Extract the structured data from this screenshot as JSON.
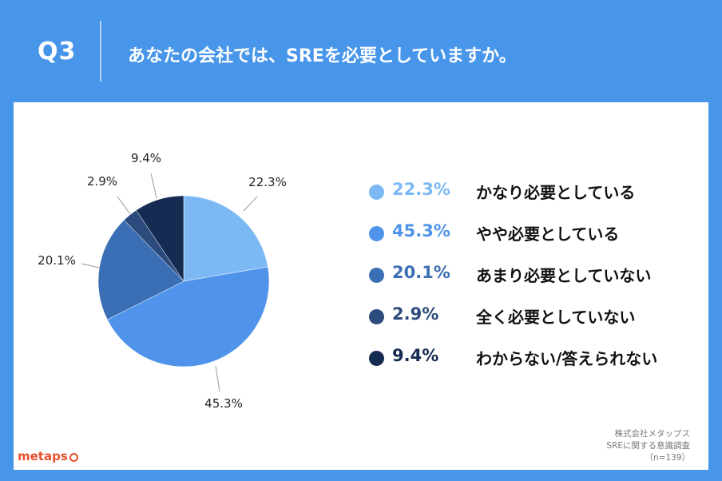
{
  "header": {
    "question_label": "Q3",
    "title": "あなたの会社では、SREを必要としていますか。"
  },
  "chart_data": {
    "type": "pie",
    "categories": [
      "かなり必要としている",
      "やや必要としている",
      "あまり必要としていない",
      "全く必要としていない",
      "わからない/答えられない"
    ],
    "values": [
      22.3,
      45.3,
      20.1,
      2.9,
      9.4
    ],
    "value_labels": [
      "22.3%",
      "45.3%",
      "20.1%",
      "2.9%",
      "9.4%"
    ],
    "colors": [
      "#7cb9f4",
      "#4f94ea",
      "#3b6fb5",
      "#2c4a7b",
      "#152b52"
    ],
    "start_angle": "12 o'clock",
    "direction": "clockwise",
    "legend_position": "right"
  },
  "legend": [
    {
      "pct": "22.3%",
      "label": "かなり必要としている",
      "color": "#7cb9f4"
    },
    {
      "pct": "45.3%",
      "label": "やや必要としている",
      "color": "#4f94ea"
    },
    {
      "pct": "20.1%",
      "label": "あまり必要としていない",
      "color": "#3b6fb5"
    },
    {
      "pct": "2.9%",
      "label": "全く必要としていない",
      "color": "#2c4a7b"
    },
    {
      "pct": "9.4%",
      "label": "わからない/答えられない",
      "color": "#152b52"
    }
  ],
  "footer": {
    "logo": "metaps",
    "company": "株式会社メタップス",
    "survey": "SREに関する意識調査",
    "sample": "（n=139）"
  }
}
